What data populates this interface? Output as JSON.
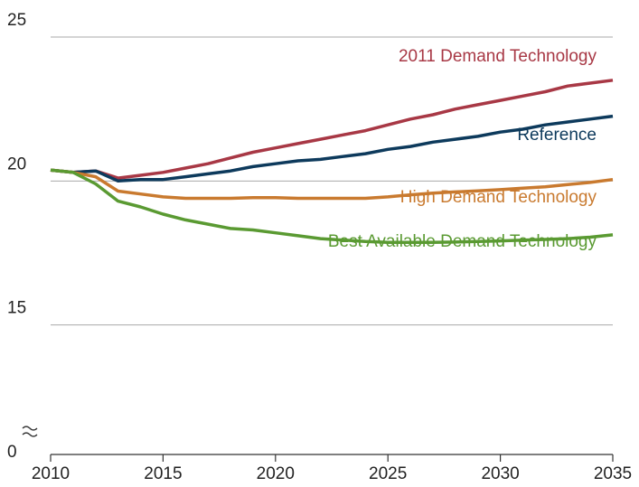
{
  "chart_data": {
    "type": "line",
    "x": [
      2010,
      2011,
      2012,
      2013,
      2014,
      2015,
      2016,
      2017,
      2018,
      2019,
      2020,
      2021,
      2022,
      2023,
      2024,
      2025,
      2026,
      2027,
      2028,
      2029,
      2030,
      2031,
      2032,
      2033,
      2034,
      2035
    ],
    "xlim": [
      2010,
      2035
    ],
    "xticks": [
      2010,
      2015,
      2020,
      2025,
      2030,
      2035
    ],
    "ylim": [
      0,
      25
    ],
    "y_break": [
      0,
      10
    ],
    "yticks": [
      0,
      15,
      20,
      25
    ],
    "grid": true,
    "series": [
      {
        "name": "2011 Demand Technology",
        "color": "#a83845",
        "values": [
          20.38,
          20.3,
          20.35,
          20.1,
          20.2,
          20.3,
          20.45,
          20.6,
          20.8,
          21.0,
          21.15,
          21.3,
          21.45,
          21.6,
          21.75,
          21.95,
          22.15,
          22.3,
          22.5,
          22.65,
          22.8,
          22.95,
          23.1,
          23.3,
          23.4,
          23.5
        ]
      },
      {
        "name": "Reference",
        "color": "#0d3a5c",
        "values": [
          20.38,
          20.3,
          20.35,
          20.0,
          20.05,
          20.05,
          20.15,
          20.25,
          20.35,
          20.5,
          20.6,
          20.7,
          20.75,
          20.85,
          20.95,
          21.1,
          21.2,
          21.35,
          21.45,
          21.55,
          21.7,
          21.8,
          21.95,
          22.05,
          22.15,
          22.25
        ]
      },
      {
        "name": "High Demand Technology",
        "color": "#c97a2f",
        "values": [
          20.38,
          20.3,
          20.15,
          19.65,
          19.55,
          19.45,
          19.4,
          19.4,
          19.4,
          19.42,
          19.42,
          19.4,
          19.4,
          19.4,
          19.4,
          19.45,
          19.52,
          19.58,
          19.62,
          19.66,
          19.7,
          19.75,
          19.8,
          19.88,
          19.95,
          20.05
        ]
      },
      {
        "name": "Best Available Demand Technology",
        "color": "#5a9a32",
        "values": [
          20.38,
          20.3,
          19.9,
          19.3,
          19.1,
          18.85,
          18.65,
          18.5,
          18.35,
          18.3,
          18.2,
          18.1,
          18.0,
          17.95,
          17.9,
          17.87,
          17.87,
          17.87,
          17.88,
          17.9,
          17.92,
          17.95,
          17.97,
          18.0,
          18.05,
          18.13
        ]
      }
    ]
  }
}
